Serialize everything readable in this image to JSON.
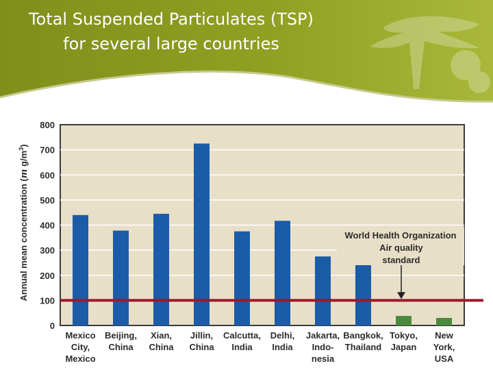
{
  "slide": {
    "title_line1": "Total Suspended Particulates (TSP)",
    "title_line2": "for several large countries",
    "header_color": "#8a9a1e",
    "header_color_light": "#b4c03a"
  },
  "chart_data": {
    "type": "bar",
    "categories": [
      [
        "Mexico",
        "City,",
        "Mexico"
      ],
      [
        "Beijing,",
        "China"
      ],
      [
        "Xian,",
        "China"
      ],
      [
        "Jillin,",
        "China"
      ],
      [
        "Calcutta,",
        "India"
      ],
      [
        "Delhi,",
        "India"
      ],
      [
        "Jakarta,",
        "Indo-",
        "nesia"
      ],
      [
        "Bangkok,",
        "Thailand"
      ],
      [
        "Tokyo,",
        "Japan"
      ],
      [
        "New",
        "York,",
        "USA"
      ]
    ],
    "values": [
      440,
      378,
      445,
      725,
      375,
      417,
      275,
      278,
      38,
      30
    ],
    "bar_colors": [
      "#1a5ca8",
      "#1a5ca8",
      "#1a5ca8",
      "#1a5ca8",
      "#1a5ca8",
      "#1a5ca8",
      "#1a5ca8",
      "#1a5ca8",
      "#4b8a3c",
      "#4b8a3c"
    ],
    "ylabel_main": "Annual mean concentration (",
    "ylabel_mu": "m",
    "ylabel_unit": " g/m",
    "ylabel_sup": "3",
    "ylabel_close": ")",
    "ylim": [
      0,
      800
    ],
    "yticks": [
      0,
      100,
      200,
      300,
      400,
      500,
      600,
      700,
      800
    ],
    "grid": true,
    "background_color": "#e8dfc8",
    "reference_line": {
      "value": 100,
      "color": "#9b1a2a"
    },
    "annotation": {
      "lines": [
        "World Health Organization",
        "Air quality",
        "standard"
      ]
    }
  }
}
